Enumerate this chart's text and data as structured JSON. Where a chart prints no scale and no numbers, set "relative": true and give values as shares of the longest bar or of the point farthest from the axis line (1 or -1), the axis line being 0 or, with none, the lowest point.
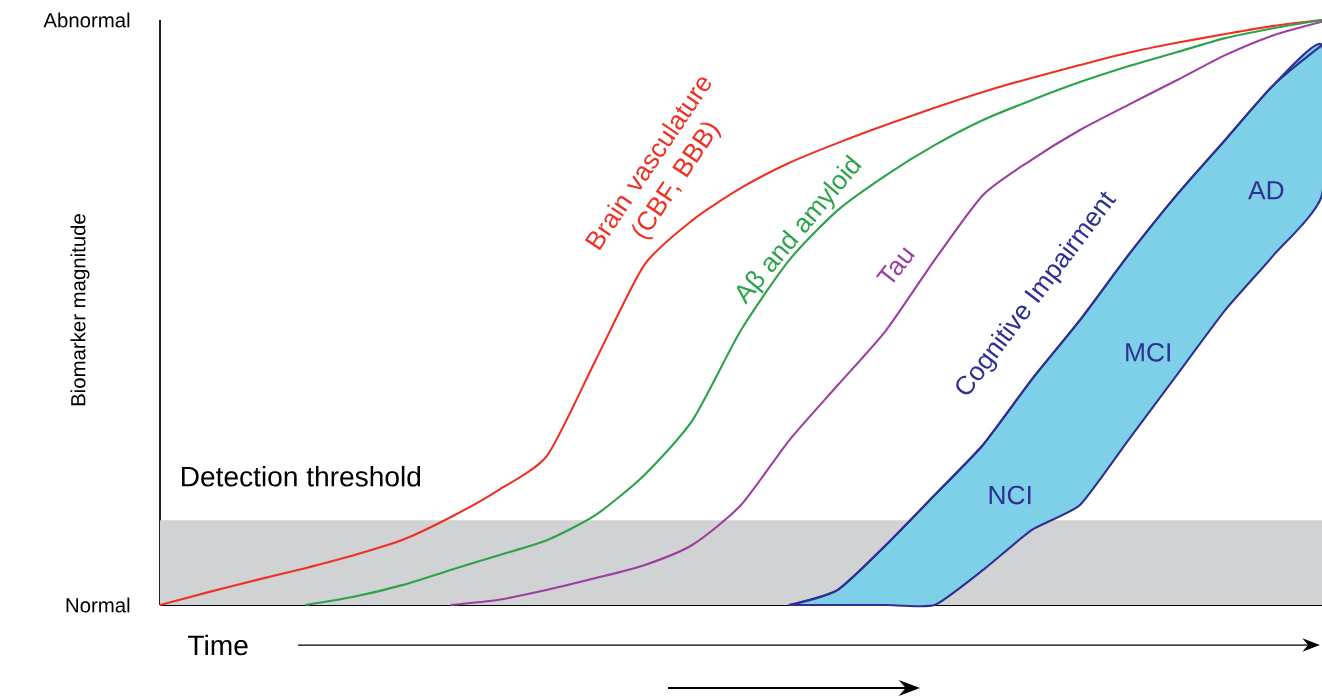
{
  "chart_data": {
    "type": "line",
    "relative": true,
    "xlabel": "Time",
    "ylabel": "Biomarker magnitude",
    "grid": false,
    "categories": [
      null,
      null,
      null,
      null,
      null,
      null,
      null,
      null,
      null,
      null,
      null,
      null,
      null,
      null,
      null,
      null,
      null,
      null,
      null,
      null,
      null,
      null,
      null,
      null,
      null
    ],
    "series": [
      {
        "name": "Brain vasculature (CBF, BBB)",
        "color": "#ee3124",
        "values": [
          0,
          0.022,
          0.043,
          0.063,
          0.085,
          0.111,
          0.15,
          0.197,
          0.256,
          0.419,
          0.581,
          0.658,
          0.713,
          0.756,
          0.79,
          0.821,
          0.85,
          0.877,
          0.901,
          0.923,
          0.944,
          0.961,
          0.976,
          0.99,
          1
        ]
      },
      {
        "name": "Aβ and amyloid",
        "color": "#2ca24a",
        "values": [
          null,
          null,
          null,
          0,
          0.014,
          0.034,
          0.06,
          0.085,
          0.111,
          0.154,
          0.222,
          0.316,
          0.47,
          0.59,
          0.675,
          0.735,
          0.786,
          0.829,
          0.863,
          0.894,
          0.921,
          0.945,
          0.969,
          0.986,
          1
        ]
      },
      {
        "name": "Tau",
        "color": "#9b3fa0",
        "values": [
          null,
          null,
          null,
          null,
          null,
          null,
          0,
          0.009,
          0.026,
          0.046,
          0.068,
          0.103,
          0.171,
          0.282,
          0.376,
          0.47,
          0.59,
          0.701,
          0.761,
          0.812,
          0.855,
          0.897,
          0.94,
          0.974,
          0.997
        ]
      },
      {
        "name": "Cognitive Impairment",
        "color": "#2e3192",
        "values": [
          null,
          null,
          null,
          null,
          null,
          null,
          null,
          null,
          null,
          null,
          null,
          null,
          null,
          0,
          0.026,
          0.103,
          0.188,
          0.274,
          0.385,
          0.487,
          0.598,
          0.701,
          0.795,
          0.889,
          0.957
        ],
        "upper": [
          null,
          null,
          null,
          null,
          null,
          null,
          null,
          null,
          null,
          null,
          null,
          null,
          null,
          0,
          0.026,
          0.103,
          0.188,
          0.274,
          0.385,
          0.487,
          0.598,
          0.701,
          0.795,
          0.889,
          0.957
        ],
        "lower": [
          null,
          null,
          null,
          null,
          null,
          null,
          null,
          null,
          null,
          null,
          null,
          null,
          null,
          0,
          0,
          0,
          0,
          0.06,
          0.128,
          0.171,
          0.282,
          0.393,
          0.504,
          0.598,
          0.701
        ]
      }
    ],
    "bands": [
      {
        "axis": "y",
        "from": 0,
        "to": 0.145,
        "label": "Detection threshold",
        "color": "#d1d2d4"
      }
    ],
    "annotations": [
      "Normal",
      "Abnormal",
      "NCI",
      "MCI",
      "AD"
    ]
  }
}
